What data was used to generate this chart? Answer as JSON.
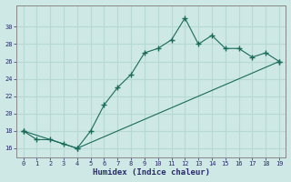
{
  "line1_x": [
    0,
    1,
    2,
    3,
    4,
    5,
    6,
    7,
    8,
    9,
    10,
    11,
    12,
    13,
    14,
    15,
    16,
    17,
    18,
    19
  ],
  "line1_y": [
    18,
    17,
    17,
    16.5,
    16,
    18,
    21,
    23,
    24.5,
    27,
    27.5,
    28.5,
    31,
    28,
    29,
    27.5,
    27.5,
    26.5,
    27,
    26
  ],
  "line2_x": [
    0,
    4,
    19
  ],
  "line2_y": [
    18,
    16,
    26
  ],
  "line_color": "#1a6b5a",
  "marker": "D",
  "marker_size": 2.5,
  "xlabel": "Humidex (Indice chaleur)",
  "xticks": [
    0,
    1,
    2,
    3,
    4,
    5,
    6,
    7,
    8,
    9,
    10,
    11,
    12,
    13,
    14,
    15,
    16,
    17,
    18,
    19
  ],
  "yticks": [
    16,
    18,
    20,
    22,
    24,
    26,
    28,
    30
  ],
  "ylim": [
    15.0,
    32.5
  ],
  "xlim": [
    -0.5,
    19.5
  ],
  "bg_color": "#cde8e5",
  "grid_color": "#b8d8d4"
}
